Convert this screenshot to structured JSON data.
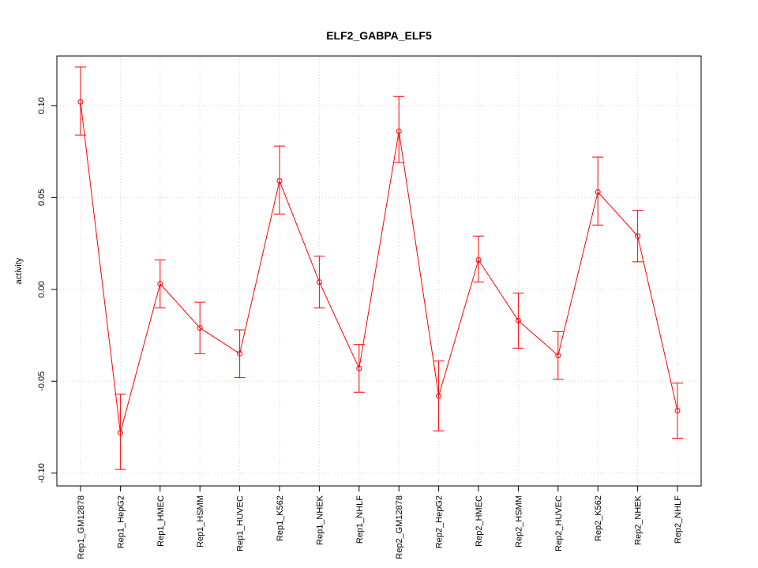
{
  "chart_data": {
    "type": "line",
    "title": "ELF2_GABPA_ELF5",
    "xlabel": "",
    "ylabel": "activity",
    "ylim": [
      -0.107,
      0.127
    ],
    "yticks": [
      -0.1,
      -0.05,
      0.0,
      0.05,
      0.1
    ],
    "ytick_labels": [
      "-0.10",
      "-0.05",
      "0.00",
      "0.05",
      "0.10"
    ],
    "grid": true,
    "colors": {
      "series": "#ff0000",
      "grid": "#d3d3d3",
      "axis": "#000000"
    },
    "categories": [
      "Rep1_GM12878",
      "Rep1_HepG2",
      "Rep1_HMEC",
      "Rep1_HSMM",
      "Rep1_HUVEC",
      "Rep1_K562",
      "Rep1_NHEK",
      "Rep1_NHLF",
      "Rep2_GM12878",
      "Rep2_HepG2",
      "Rep2_HMEC",
      "Rep2_HSMM",
      "Rep2_HUVEC",
      "Rep2_K562",
      "Rep2_NHEK",
      "Rep2_NHLF"
    ],
    "series": [
      {
        "name": "activity",
        "values": [
          0.102,
          -0.078,
          0.003,
          -0.021,
          -0.035,
          0.059,
          0.004,
          -0.043,
          0.086,
          -0.058,
          0.016,
          -0.017,
          -0.036,
          0.053,
          0.029,
          -0.066
        ],
        "lower": [
          0.084,
          -0.098,
          -0.01,
          -0.035,
          -0.048,
          0.041,
          -0.01,
          -0.056,
          0.069,
          -0.077,
          0.004,
          -0.032,
          -0.049,
          0.035,
          0.015,
          -0.081
        ],
        "upper": [
          0.121,
          -0.057,
          0.016,
          -0.007,
          -0.022,
          0.078,
          0.018,
          -0.03,
          0.105,
          -0.039,
          0.029,
          -0.002,
          -0.023,
          0.072,
          0.043,
          -0.051
        ]
      }
    ]
  }
}
